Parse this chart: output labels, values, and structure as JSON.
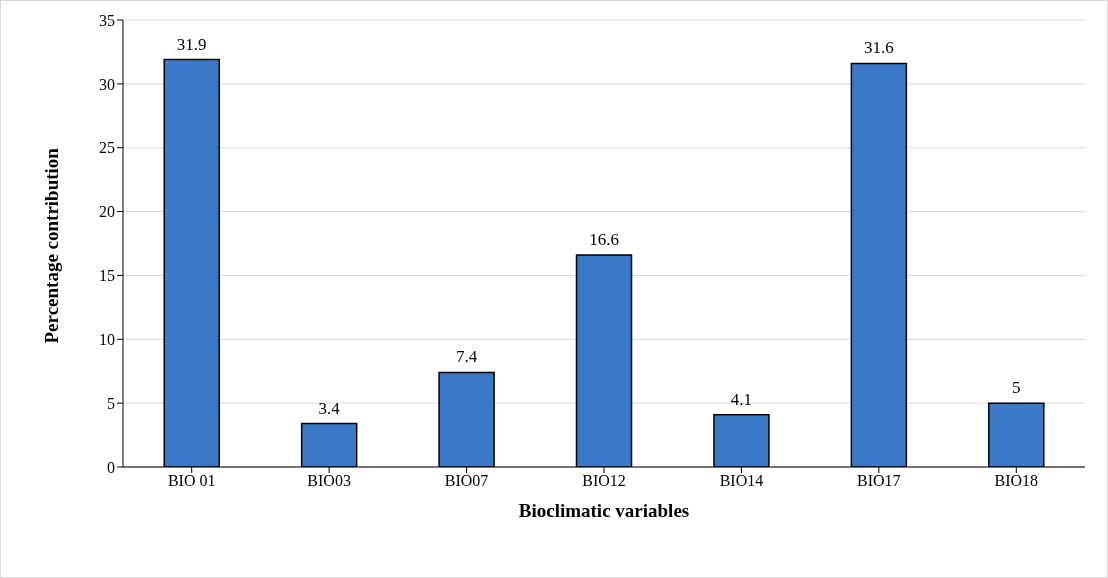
{
  "chart_data": {
    "type": "bar",
    "xlabel": "Bioclimatic variables",
    "ylabel": "Percentage contribution",
    "categories": [
      "BIO 01",
      "BIO03",
      "BIO07",
      "BIO12",
      "BIO14",
      "BIO17",
      "BIO18"
    ],
    "values": [
      31.9,
      3.4,
      7.4,
      16.6,
      4.1,
      31.6,
      5
    ],
    "color": "#3a78c8",
    "ylim": [
      0,
      35
    ],
    "yticks": [
      0,
      5,
      10,
      15,
      20,
      25,
      30,
      35
    ],
    "grid": "y",
    "data_labels": true
  }
}
